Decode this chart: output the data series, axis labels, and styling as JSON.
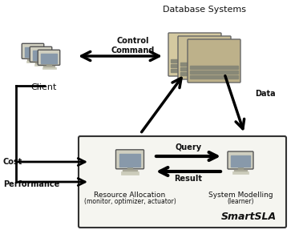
{
  "title": "",
  "bg_color": "#ffffff",
  "box_color": "#ffffff",
  "box_edge_color": "#000000",
  "text_color": "#000000",
  "arrow_color": "#000000",
  "labels": {
    "database": "Database Systems",
    "client": "Client",
    "control_command": "Control\nCommand",
    "data": "Data",
    "cost": "Cost",
    "performance": "Performance",
    "query": "Query",
    "result": "Result",
    "resource_allocation": "Resource Allocation",
    "resource_sub": "(monitor, optimizer, actuator)",
    "system_modelling": "System Modelling",
    "system_sub": "(learner)",
    "smartsla": "SmartSLA"
  },
  "figsize": [
    3.78,
    3.02
  ],
  "dpi": 100
}
